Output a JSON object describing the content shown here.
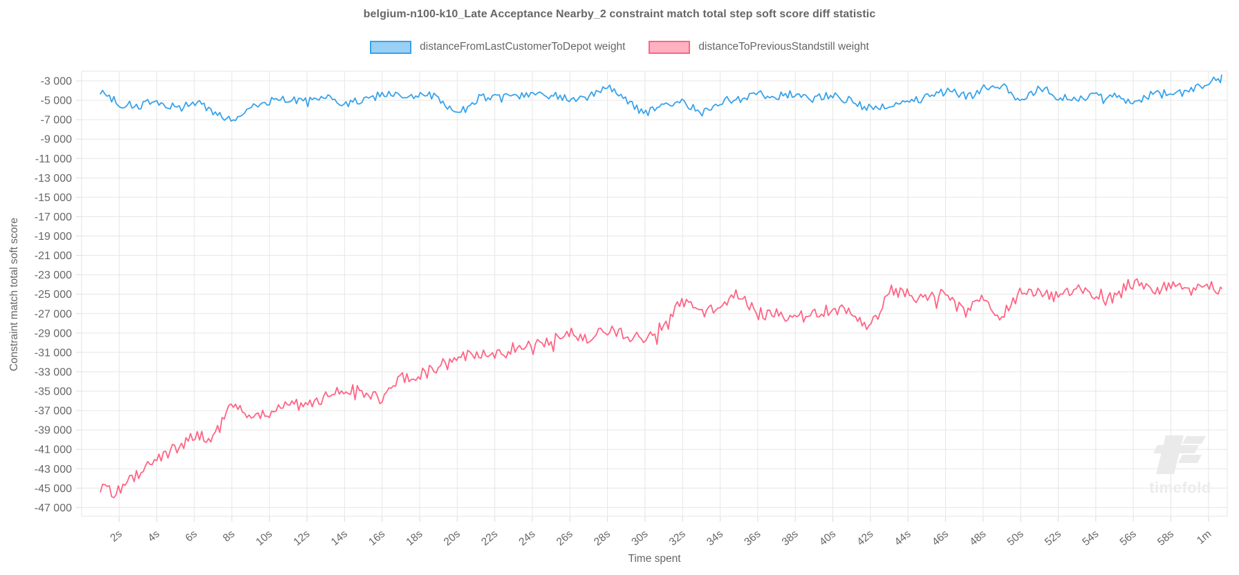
{
  "title": "belgium-n100-k10_Late Acceptance Nearby_2 constraint match total step soft score diff statistic",
  "watermark_text": "timefold",
  "legend": {
    "items": [
      {
        "label": "distanceFromLastCustomerToDepot weight",
        "fill": "#9ad0f5",
        "border": "#36a2eb"
      },
      {
        "label": "distanceToPreviousStandstill weight",
        "fill": "#ffb1c1",
        "border": "#ff6384"
      }
    ]
  },
  "chart_data": {
    "type": "line",
    "title": "belgium-n100-k10_Late Acceptance Nearby_2 constraint match total step soft score diff statistic",
    "xlabel": "Time spent",
    "ylabel": "Constraint match total soft score",
    "legend_position": "top",
    "grid": true,
    "xlim": [
      0,
      61
    ],
    "ylim": [
      -47900,
      -2000
    ],
    "x_ticks": {
      "values": [
        2,
        4,
        6,
        8,
        10,
        12,
        14,
        16,
        18,
        20,
        22,
        24,
        26,
        28,
        30,
        32,
        34,
        36,
        38,
        40,
        42,
        44,
        46,
        48,
        50,
        52,
        54,
        56,
        58,
        60
      ],
      "labels": [
        "2s",
        "4s",
        "6s",
        "8s",
        "10s",
        "12s",
        "14s",
        "16s",
        "18s",
        "20s",
        "22s",
        "24s",
        "26s",
        "28s",
        "30s",
        "32s",
        "34s",
        "36s",
        "38s",
        "40s",
        "42s",
        "44s",
        "46s",
        "48s",
        "50s",
        "52s",
        "54s",
        "56s",
        "58s",
        "1m"
      ]
    },
    "y_ticks": {
      "values": [
        -3000,
        -5000,
        -7000,
        -9000,
        -11000,
        -13000,
        -15000,
        -17000,
        -19000,
        -21000,
        -23000,
        -25000,
        -27000,
        -29000,
        -31000,
        -33000,
        -35000,
        -37000,
        -39000,
        -41000,
        -43000,
        -45000,
        -47000
      ],
      "labels": [
        "-3 000",
        "-5 000",
        "-7 000",
        "-9 000",
        "-11 000",
        "-13 000",
        "-15 000",
        "-17 000",
        "-19 000",
        "-21 000",
        "-23 000",
        "-25 000",
        "-27 000",
        "-29 000",
        "-31 000",
        "-33 000",
        "-35 000",
        "-37 000",
        "-39 000",
        "-41 000",
        "-43 000",
        "-45 000",
        "-47 000"
      ]
    },
    "series": [
      {
        "name": "distanceFromLastCustomerToDepot weight",
        "color": "#36a2eb",
        "noise": 430,
        "x": [
          1,
          2,
          3,
          4,
          5,
          6,
          7,
          8,
          9,
          10,
          11,
          12,
          13,
          14,
          15,
          16,
          17,
          18,
          19,
          20,
          21,
          22,
          23,
          24,
          25,
          26,
          27,
          28,
          29,
          30,
          31,
          32,
          33,
          34,
          35,
          36,
          37,
          38,
          39,
          40,
          41,
          42,
          43,
          44,
          45,
          46,
          47,
          48,
          49,
          50,
          51,
          52,
          53,
          54,
          55,
          56,
          57,
          58,
          59,
          60,
          60.7
        ],
        "y": [
          -3900,
          -5400,
          -5600,
          -5100,
          -5700,
          -5100,
          -6200,
          -7100,
          -5600,
          -5100,
          -4900,
          -5200,
          -4600,
          -5300,
          -5000,
          -4400,
          -4600,
          -4400,
          -4700,
          -6600,
          -4900,
          -4400,
          -4500,
          -4600,
          -4400,
          -4900,
          -4600,
          -3600,
          -5100,
          -6300,
          -5300,
          -5100,
          -6400,
          -5100,
          -4900,
          -4400,
          -4600,
          -4300,
          -4900,
          -4400,
          -5100,
          -5900,
          -5600,
          -5300,
          -4600,
          -3900,
          -4600,
          -3600,
          -3400,
          -4900,
          -3700,
          -4600,
          -4900,
          -4400,
          -4600,
          -5300,
          -4400,
          -4300,
          -4100,
          -3000,
          -2400
        ]
      },
      {
        "name": "distanceToPreviousStandstill weight",
        "color": "#ff6384",
        "noise": 640,
        "x": [
          1,
          2,
          3,
          4,
          5,
          6,
          7,
          8,
          9,
          10,
          11,
          12,
          13,
          14,
          15,
          16,
          17,
          18,
          19,
          20,
          21,
          22,
          23,
          24,
          25,
          26,
          27,
          28,
          29,
          30,
          31,
          32,
          33,
          34,
          35,
          36,
          37,
          38,
          39,
          40,
          41,
          42,
          43,
          44,
          45,
          46,
          47,
          48,
          49,
          50,
          51,
          52,
          53,
          54,
          55,
          56,
          57,
          58,
          59,
          60,
          60.7
        ],
        "y": [
          -45200,
          -45400,
          -43400,
          -42200,
          -40900,
          -39600,
          -39800,
          -36300,
          -37600,
          -37400,
          -36600,
          -36300,
          -35600,
          -34700,
          -35100,
          -35800,
          -33600,
          -33300,
          -32600,
          -31200,
          -31600,
          -31100,
          -30600,
          -30100,
          -29700,
          -29100,
          -29600,
          -28600,
          -29300,
          -29700,
          -28200,
          -25600,
          -27000,
          -26400,
          -24900,
          -27000,
          -27100,
          -27400,
          -27000,
          -26600,
          -26700,
          -28600,
          -24500,
          -25100,
          -25400,
          -25000,
          -27000,
          -25400,
          -27300,
          -24900,
          -24600,
          -25400,
          -24500,
          -25000,
          -25400,
          -23600,
          -24700,
          -24100,
          -24500,
          -24300,
          -24400
        ]
      }
    ]
  }
}
